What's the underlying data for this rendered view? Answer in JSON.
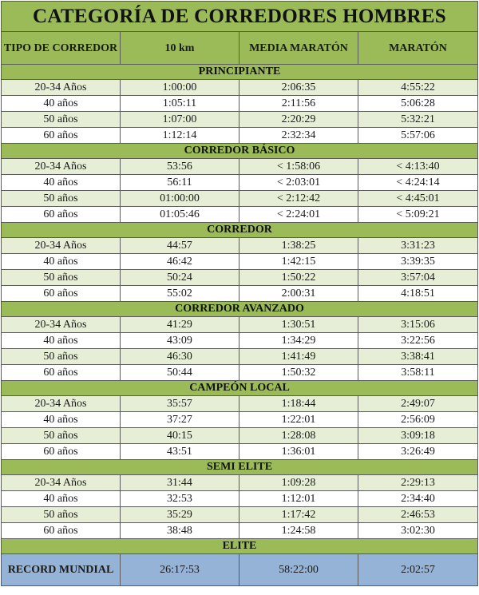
{
  "title": "CATEGORÍA DE CORREDORES HOMBRES",
  "columns": [
    "TIPO DE CORREDOR",
    "10 km",
    "MEDIA MARATÓN",
    "MARATÓN"
  ],
  "colors": {
    "header": "#9bbb59",
    "stripe": "#e6eed5",
    "record": "#95b3d7"
  },
  "sections": [
    {
      "name": "PRINCIPIANTE",
      "rows": [
        [
          "20-34 Años",
          "1:00:00",
          "2:06:35",
          "4:55:22"
        ],
        [
          "40 años",
          "1:05:11",
          "2:11:56",
          "5:06:28"
        ],
        [
          "50 años",
          "1:07:00",
          "2:20:29",
          "5:32:21"
        ],
        [
          "60 años",
          "1:12:14",
          "2:32:34",
          "5:57:06"
        ]
      ]
    },
    {
      "name": "CORREDOR BÁSICO",
      "rows": [
        [
          "20-34 Años",
          "53:56",
          "< 1:58:06",
          "< 4:13:40"
        ],
        [
          "40 años",
          "56:11",
          "< 2:03:01",
          "< 4:24:14"
        ],
        [
          "50 años",
          "01:00:00",
          "< 2:12:42",
          "< 4:45:01"
        ],
        [
          "60 años",
          "01:05:46",
          "< 2:24:01",
          "< 5:09:21"
        ]
      ]
    },
    {
      "name": "CORREDOR",
      "rows": [
        [
          "20-34 Años",
          "44:57",
          "1:38:25",
          "3:31:23"
        ],
        [
          "40 años",
          "46:42",
          "1:42:15",
          "3:39:35"
        ],
        [
          "50 años",
          "50:24",
          "1:50:22",
          "3:57:04"
        ],
        [
          "60 años",
          "55:02",
          "2:00:31",
          "4:18:51"
        ]
      ]
    },
    {
      "name": "CORREDOR AVANZADO",
      "rows": [
        [
          "20-34 Años",
          "41:29",
          "1:30:51",
          "3:15:06"
        ],
        [
          "40 años",
          "43:09",
          "1:34:29",
          "3:22:56"
        ],
        [
          "50 años",
          "46:30",
          "1:41:49",
          "3:38:41"
        ],
        [
          "60 años",
          "50:44",
          "1:50:32",
          "3:58:11"
        ]
      ]
    },
    {
      "name": "CAMPEÓN LOCAL",
      "rows": [
        [
          "20-34 Años",
          "35:57",
          "1:18:44",
          "2:49:07"
        ],
        [
          "40 años",
          "37:27",
          "1:22:01",
          "2:56:09"
        ],
        [
          "50 años",
          "40:15",
          "1:28:08",
          "3:09:18"
        ],
        [
          "60 años",
          "43:51",
          "1:36:01",
          "3:26:49"
        ]
      ]
    },
    {
      "name": "SEMI ELITE",
      "rows": [
        [
          "20-34 Años",
          "31:44",
          "1:09:28",
          "2:29:13"
        ],
        [
          "40 años",
          "32:53",
          "1:12:01",
          "2:34:40"
        ],
        [
          "50 años",
          "35:29",
          "1:17:42",
          "2:46:53"
        ],
        [
          "60 años",
          "38:48",
          "1:24:58",
          "3:02:30"
        ]
      ]
    },
    {
      "name": "ELITE",
      "rows": []
    }
  ],
  "record": {
    "label": "RECORD MUNDIAL",
    "values": [
      "26:17:53",
      "58:22:00",
      "2:02:57"
    ]
  }
}
